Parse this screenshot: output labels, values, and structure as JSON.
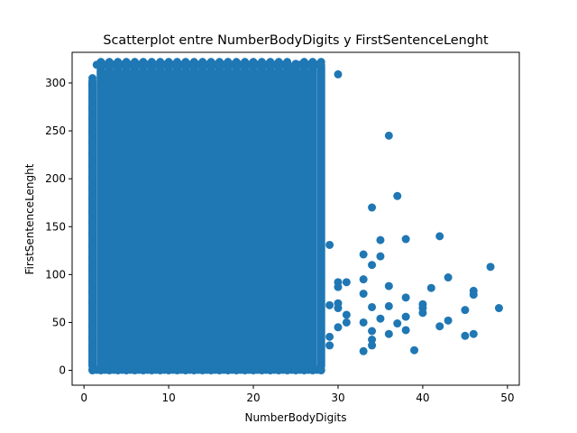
{
  "chart_data": {
    "type": "scatter",
    "title": "Scatterplot entre NumberBodyDigits y FirstSentenceLenght",
    "xlabel": "NumberBodyDigits",
    "ylabel": "FirstSentenceLenght",
    "xlim": [
      -1.4,
      51.4
    ],
    "ylim": [
      -15.5,
      332
    ],
    "xticks": [
      0,
      10,
      20,
      30,
      40,
      50
    ],
    "yticks": [
      0,
      50,
      100,
      150,
      200,
      250,
      300
    ],
    "grid": false,
    "legend": "none",
    "marker_color": "#1f77b4",
    "dense_region": {
      "x_min": 1,
      "x_max": 28,
      "y_min": 0,
      "y_max": 322,
      "note": "integer x columns densely filled from y=0 to about y=322"
    },
    "column_tops": [
      {
        "x": 1,
        "top": 305
      },
      {
        "x": 2,
        "top": 322
      },
      {
        "x": 3,
        "top": 322
      },
      {
        "x": 4,
        "top": 322
      },
      {
        "x": 5,
        "top": 322
      },
      {
        "x": 6,
        "top": 322
      },
      {
        "x": 7,
        "top": 322
      },
      {
        "x": 8,
        "top": 322
      },
      {
        "x": 9,
        "top": 322
      },
      {
        "x": 10,
        "top": 322
      },
      {
        "x": 11,
        "top": 322
      },
      {
        "x": 12,
        "top": 322
      },
      {
        "x": 13,
        "top": 322
      },
      {
        "x": 14,
        "top": 322
      },
      {
        "x": 15,
        "top": 322
      },
      {
        "x": 16,
        "top": 322
      },
      {
        "x": 17,
        "top": 322
      },
      {
        "x": 18,
        "top": 322
      },
      {
        "x": 19,
        "top": 322
      },
      {
        "x": 20,
        "top": 322
      },
      {
        "x": 21,
        "top": 322
      },
      {
        "x": 22,
        "top": 322
      },
      {
        "x": 23,
        "top": 322
      },
      {
        "x": 24,
        "top": 322
      },
      {
        "x": 25,
        "top": 320
      },
      {
        "x": 26,
        "top": 322
      },
      {
        "x": 27,
        "top": 322
      },
      {
        "x": 28,
        "top": 322
      }
    ],
    "sparse_points": [
      {
        "x": 29,
        "y": 131
      },
      {
        "x": 29,
        "y": 68
      },
      {
        "x": 29,
        "y": 35
      },
      {
        "x": 29,
        "y": 26
      },
      {
        "x": 30,
        "y": 309
      },
      {
        "x": 30,
        "y": 92
      },
      {
        "x": 30,
        "y": 87
      },
      {
        "x": 30,
        "y": 70
      },
      {
        "x": 30,
        "y": 65
      },
      {
        "x": 30,
        "y": 45
      },
      {
        "x": 31,
        "y": 92
      },
      {
        "x": 31,
        "y": 58
      },
      {
        "x": 31,
        "y": 50
      },
      {
        "x": 33,
        "y": 121
      },
      {
        "x": 33,
        "y": 95
      },
      {
        "x": 33,
        "y": 80
      },
      {
        "x": 33,
        "y": 50
      },
      {
        "x": 33,
        "y": 20
      },
      {
        "x": 34,
        "y": 170
      },
      {
        "x": 34,
        "y": 110
      },
      {
        "x": 34,
        "y": 66
      },
      {
        "x": 34,
        "y": 41
      },
      {
        "x": 34,
        "y": 32
      },
      {
        "x": 34,
        "y": 26
      },
      {
        "x": 35,
        "y": 136
      },
      {
        "x": 35,
        "y": 119
      },
      {
        "x": 35,
        "y": 54
      },
      {
        "x": 36,
        "y": 245
      },
      {
        "x": 36,
        "y": 88
      },
      {
        "x": 36,
        "y": 67
      },
      {
        "x": 36,
        "y": 38
      },
      {
        "x": 37,
        "y": 182
      },
      {
        "x": 37,
        "y": 49
      },
      {
        "x": 38,
        "y": 137
      },
      {
        "x": 38,
        "y": 76
      },
      {
        "x": 38,
        "y": 56
      },
      {
        "x": 38,
        "y": 42
      },
      {
        "x": 39,
        "y": 21
      },
      {
        "x": 40,
        "y": 69
      },
      {
        "x": 40,
        "y": 65
      },
      {
        "x": 40,
        "y": 60
      },
      {
        "x": 41,
        "y": 86
      },
      {
        "x": 42,
        "y": 140
      },
      {
        "x": 42,
        "y": 46
      },
      {
        "x": 43,
        "y": 97
      },
      {
        "x": 43,
        "y": 52
      },
      {
        "x": 45,
        "y": 63
      },
      {
        "x": 45,
        "y": 36
      },
      {
        "x": 46,
        "y": 83
      },
      {
        "x": 46,
        "y": 79
      },
      {
        "x": 46,
        "y": 38
      },
      {
        "x": 48,
        "y": 108
      },
      {
        "x": 49,
        "y": 65
      }
    ]
  }
}
